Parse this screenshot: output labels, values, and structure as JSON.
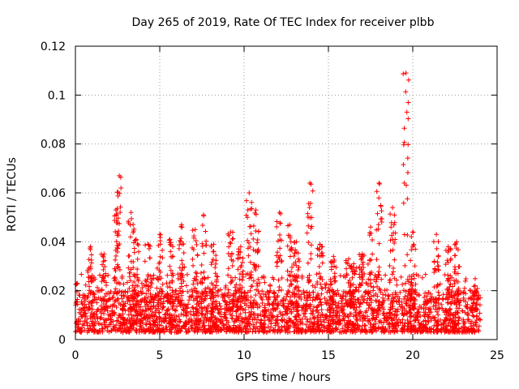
{
  "chart_data": {
    "type": "scatter",
    "title": "Day 265 of 2019, Rate Of TEC Index for receiver plbb",
    "xlabel": "GPS time / hours",
    "ylabel": "ROTI / TECUs",
    "xlim": [
      0,
      25
    ],
    "ylim": [
      0,
      0.12
    ],
    "xticks": [
      0,
      5,
      10,
      15,
      20,
      25
    ],
    "xtick_labels": [
      "0",
      "5",
      "10",
      "15",
      "20",
      "25"
    ],
    "yticks": [
      0,
      0.02,
      0.04,
      0.06,
      0.08,
      0.1,
      0.12
    ],
    "ytick_labels": [
      "0",
      "0.02",
      "0.04",
      "0.06",
      "0.08",
      "0.1",
      "0.12"
    ],
    "grid": true,
    "marker": "+",
    "color": "#ff0000",
    "x_range_data": [
      0,
      24
    ],
    "series": [
      {
        "name": "ROTI",
        "background_band": {
          "x": [
            0,
            24
          ],
          "y": [
            0.003,
            0.02
          ]
        },
        "peaks": [
          {
            "x": 0.9,
            "y": 0.038
          },
          {
            "x": 1.7,
            "y": 0.035
          },
          {
            "x": 2.4,
            "y": 0.053
          },
          {
            "x": 2.6,
            "y": 0.067
          },
          {
            "x": 3.3,
            "y": 0.052
          },
          {
            "x": 3.6,
            "y": 0.041
          },
          {
            "x": 4.3,
            "y": 0.039
          },
          {
            "x": 5.0,
            "y": 0.043
          },
          {
            "x": 5.6,
            "y": 0.041
          },
          {
            "x": 6.3,
            "y": 0.047
          },
          {
            "x": 7.1,
            "y": 0.045
          },
          {
            "x": 7.6,
            "y": 0.051
          },
          {
            "x": 8.2,
            "y": 0.039
          },
          {
            "x": 9.2,
            "y": 0.044
          },
          {
            "x": 9.8,
            "y": 0.038
          },
          {
            "x": 10.3,
            "y": 0.06
          },
          {
            "x": 10.7,
            "y": 0.053
          },
          {
            "x": 12.1,
            "y": 0.052
          },
          {
            "x": 12.7,
            "y": 0.047
          },
          {
            "x": 13.1,
            "y": 0.04
          },
          {
            "x": 13.9,
            "y": 0.064
          },
          {
            "x": 14.5,
            "y": 0.039
          },
          {
            "x": 15.3,
            "y": 0.034
          },
          {
            "x": 16.2,
            "y": 0.033
          },
          {
            "x": 16.5,
            "y": 0.031
          },
          {
            "x": 17.0,
            "y": 0.035
          },
          {
            "x": 17.5,
            "y": 0.046
          },
          {
            "x": 18.0,
            "y": 0.064
          },
          {
            "x": 18.8,
            "y": 0.054
          },
          {
            "x": 19.6,
            "y": 0.109
          },
          {
            "x": 20.0,
            "y": 0.044
          },
          {
            "x": 21.4,
            "y": 0.043
          },
          {
            "x": 22.1,
            "y": 0.038
          },
          {
            "x": 22.6,
            "y": 0.04
          },
          {
            "x": 23.7,
            "y": 0.022
          }
        ]
      }
    ]
  }
}
